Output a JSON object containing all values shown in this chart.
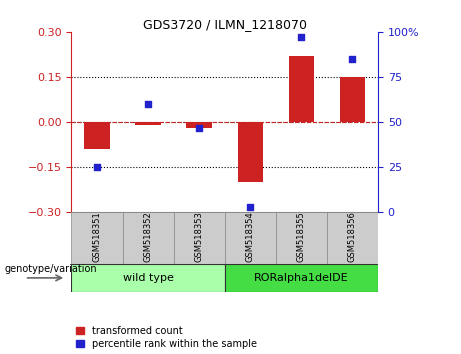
{
  "title": "GDS3720 / ILMN_1218070",
  "categories": [
    "GSM518351",
    "GSM518352",
    "GSM518353",
    "GSM518354",
    "GSM518355",
    "GSM518356"
  ],
  "red_bars": [
    -0.09,
    -0.01,
    -0.02,
    -0.2,
    0.22,
    0.15
  ],
  "blue_pct": [
    25,
    60,
    47,
    3,
    97,
    85
  ],
  "ylim": [
    -0.3,
    0.3
  ],
  "yticks_left": [
    -0.3,
    -0.15,
    0.0,
    0.15,
    0.3
  ],
  "yticks_right": [
    0,
    25,
    50,
    75,
    100
  ],
  "red_color": "#CC2222",
  "blue_color": "#2222CC",
  "bar_width": 0.5,
  "group1_label": "wild type",
  "group2_label": "RORalpha1delDE",
  "group1_indices": [
    0,
    1,
    2
  ],
  "group2_indices": [
    3,
    4,
    5
  ],
  "group1_color": "#AAFFAA",
  "group2_color": "#44DD44",
  "genotype_label": "genotype/variation",
  "legend_red": "transformed count",
  "legend_blue": "percentile rank within the sample",
  "tick_label_bg": "#CCCCCC",
  "plot_bg": "#FFFFFF"
}
